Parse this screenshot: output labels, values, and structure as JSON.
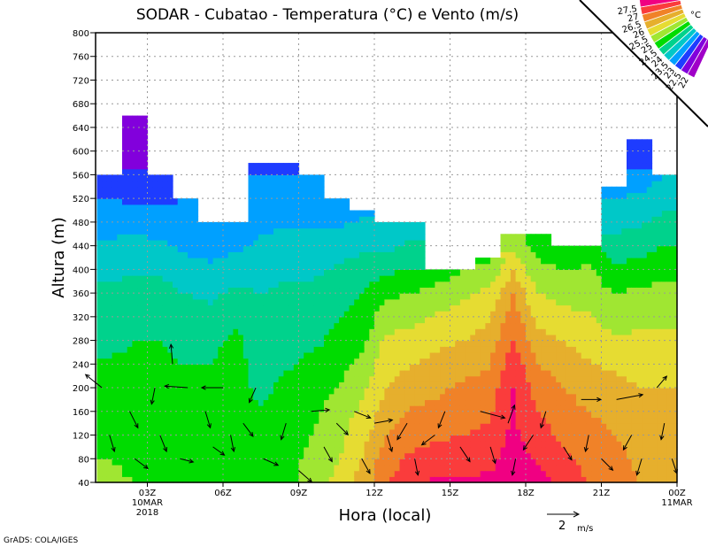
{
  "chart_data": {
    "type": "heatmap",
    "title": "SODAR - Cubatao - Temperatura (°C) e Vento (m/s)",
    "xlabel": "Hora (local)",
    "ylabel": "Altura (m)",
    "footer": "GrADS: COLA/IGES",
    "x_ticks": [
      {
        "hour": 3,
        "label": "03Z",
        "sub1": "10MAR",
        "sub2": "2018"
      },
      {
        "hour": 6,
        "label": "06Z"
      },
      {
        "hour": 9,
        "label": "09Z"
      },
      {
        "hour": 12,
        "label": "12Z"
      },
      {
        "hour": 15,
        "label": "15Z"
      },
      {
        "hour": 18,
        "label": "18Z"
      },
      {
        "hour": 21,
        "label": "21Z"
      },
      {
        "hour": 24,
        "label": "00Z",
        "sub1": "11MAR"
      }
    ],
    "xlim": [
      0.95,
      24
    ],
    "ylim": [
      40,
      800
    ],
    "y_ticks": [
      40,
      80,
      120,
      160,
      200,
      240,
      280,
      320,
      360,
      400,
      440,
      480,
      520,
      560,
      600,
      640,
      680,
      720,
      760,
      800
    ],
    "grid": true,
    "legend": {
      "unit": "°C",
      "levels": [
        22,
        22.5,
        23,
        23.5,
        24,
        24.5,
        25,
        25.5,
        26,
        26.5,
        27,
        27.5
      ],
      "level_labels": [
        "22",
        "22.5",
        "23",
        "23.5",
        "24",
        "24.5",
        "25",
        "25.5",
        "26",
        "26.5",
        "27",
        "27.5"
      ],
      "colors": [
        "#a000c8",
        "#8200dc",
        "#1e3cff",
        "#00a0ff",
        "#00c8c8",
        "#00d28c",
        "#00dc00",
        "#a0e632",
        "#e6dc32",
        "#e6af2d",
        "#f08228",
        "#fa3c3c",
        "#f00082"
      ],
      "placement": "top-right"
    },
    "height_levels": [
      40,
      120,
      200,
      280,
      360,
      440,
      520,
      600,
      680
    ],
    "columns": [
      {
        "start_hour": 1,
        "top": 560,
        "temps": [
          25.1,
          24.9,
          24.7,
          24.4,
          24.1,
          23.6,
          23.0,
          22.6
        ]
      },
      {
        "start_hour": 2,
        "top": 660,
        "temps": [
          25.0,
          24.8,
          24.6,
          24.5,
          24.2,
          23.7,
          22.9,
          22.3,
          22.0
        ]
      },
      {
        "start_hour": 3,
        "top": 560,
        "temps": [
          24.9,
          24.7,
          24.6,
          24.5,
          24.2,
          23.6,
          22.9,
          22.6
        ]
      },
      {
        "start_hour": 4,
        "top": 520,
        "temps": [
          24.8,
          24.7,
          24.6,
          24.4,
          24.0,
          23.4,
          23.0
        ]
      },
      {
        "start_hour": 5,
        "top": 480,
        "temps": [
          24.8,
          24.7,
          24.6,
          24.4,
          23.9,
          23.3,
          23.0
        ]
      },
      {
        "start_hour": 6,
        "top": 480,
        "temps": [
          25.0,
          24.6,
          24.7,
          24.6,
          24.1,
          23.4
        ]
      },
      {
        "start_hour": 7,
        "top": 580,
        "temps": [
          24.8,
          24.7,
          24.4,
          24.2,
          24.0,
          23.6,
          23.1,
          22.9
        ]
      },
      {
        "start_hour": 8,
        "top": 580,
        "temps": [
          24.9,
          24.8,
          24.6,
          24.3,
          24.1,
          23.7,
          23.2,
          22.8
        ]
      },
      {
        "start_hour": 9,
        "top": 560,
        "temps": [
          25.2,
          25.0,
          24.8,
          24.4,
          24.1,
          23.7,
          23.2,
          22.8
        ]
      },
      {
        "start_hour": 10,
        "top": 520,
        "temps": [
          25.6,
          25.3,
          25.0,
          24.6,
          24.3,
          23.8,
          23.0
        ]
      },
      {
        "start_hour": 11,
        "top": 500,
        "temps": [
          26.2,
          25.8,
          25.4,
          24.9,
          24.5,
          23.9,
          23.2
        ]
      },
      {
        "start_hour": 12,
        "top": 480,
        "temps": [
          27.0,
          26.5,
          26.0,
          25.6,
          24.9,
          23.9,
          23.3
        ]
      },
      {
        "start_hour": 13,
        "top": 480,
        "temps": [
          27.4,
          26.8,
          26.3,
          25.7,
          25.0,
          24.1,
          23.4
        ]
      },
      {
        "start_hour": 14,
        "top": 400,
        "temps": [
          27.6,
          26.9,
          26.4,
          25.9,
          25.2,
          24.3
        ]
      },
      {
        "start_hour": 15,
        "top": 400,
        "temps": [
          27.6,
          27.0,
          26.6,
          26.0,
          25.4,
          24.5
        ]
      },
      {
        "start_hour": 16,
        "top": 420,
        "temps": [
          27.6,
          27.1,
          26.7,
          26.2,
          25.6,
          24.6
        ]
      },
      {
        "start_hour": 17,
        "top": 460,
        "temps": [
          27.8,
          27.6,
          27.5,
          27.0,
          26.5,
          25.4
        ]
      },
      {
        "start_hour": 18,
        "top": 460,
        "temps": [
          27.7,
          27.2,
          26.8,
          26.2,
          25.5,
          24.8
        ]
      },
      {
        "start_hour": 19,
        "top": 440,
        "temps": [
          27.3,
          26.9,
          26.5,
          26.0,
          25.3,
          24.7
        ]
      },
      {
        "start_hour": 20,
        "top": 440,
        "temps": [
          27.0,
          26.7,
          26.3,
          25.8,
          25.3,
          24.8
        ]
      },
      {
        "start_hour": 21,
        "top": 540,
        "temps": [
          26.8,
          26.5,
          26.2,
          25.6,
          25.0,
          24.2,
          23.5
        ]
      },
      {
        "start_hour": 22,
        "top": 620,
        "temps": [
          26.5,
          26.3,
          26.0,
          25.6,
          25.1,
          24.3,
          23.6,
          22.7
        ]
      },
      {
        "start_hour": 23,
        "top": 560,
        "temps": [
          26.0,
          26.2,
          26.0,
          25.6,
          25.2,
          24.5,
          23.8
        ]
      }
    ],
    "wind_vectors": [
      [
        1.2,
        200,
        -1,
        0.8
      ],
      [
        1.5,
        120,
        0.3,
        -1
      ],
      [
        2.3,
        160,
        0.5,
        -1
      ],
      [
        2.5,
        80,
        0.8,
        -0.6
      ],
      [
        3.3,
        200,
        -0.2,
        -1
      ],
      [
        3.5,
        120,
        0.4,
        -1
      ],
      [
        4.0,
        240,
        -0.1,
        1.2
      ],
      [
        4.3,
        80,
        0.8,
        -0.2
      ],
      [
        4.6,
        200,
        -1.4,
        0.1
      ],
      [
        5.3,
        160,
        0.3,
        -1
      ],
      [
        5.6,
        100,
        0.7,
        -0.5
      ],
      [
        6.0,
        200,
        -1.3,
        0
      ],
      [
        6.3,
        120,
        0.2,
        -1
      ],
      [
        6.8,
        140,
        0.6,
        -0.8
      ],
      [
        7.3,
        200,
        -0.4,
        -0.9
      ],
      [
        7.6,
        80,
        0.9,
        -0.4
      ],
      [
        8.5,
        140,
        -0.3,
        -1
      ],
      [
        9.0,
        60,
        0.8,
        -0.7
      ],
      [
        9.5,
        160,
        1.1,
        0.1
      ],
      [
        10.0,
        100,
        0.5,
        -0.9
      ],
      [
        10.5,
        140,
        0.7,
        -0.7
      ],
      [
        11.2,
        160,
        1,
        -0.4
      ],
      [
        11.5,
        80,
        0.5,
        -0.9
      ],
      [
        12.0,
        140,
        1.1,
        0.2
      ],
      [
        12.5,
        120,
        0.3,
        -1
      ],
      [
        13.3,
        140,
        -0.6,
        -1
      ],
      [
        13.6,
        80,
        0.2,
        -1
      ],
      [
        14.4,
        120,
        -0.8,
        -0.6
      ],
      [
        14.8,
        160,
        -0.4,
        -1
      ],
      [
        15.4,
        100,
        0.6,
        -0.9
      ],
      [
        16.2,
        160,
        1.5,
        -0.4
      ],
      [
        16.6,
        100,
        0.3,
        -1
      ],
      [
        17.3,
        140,
        0.4,
        1.1
      ],
      [
        17.6,
        80,
        -0.2,
        -1
      ],
      [
        18.3,
        120,
        -0.6,
        -0.9
      ],
      [
        18.8,
        160,
        -0.3,
        -1
      ],
      [
        19.5,
        100,
        0.5,
        -0.8
      ],
      [
        20.2,
        180,
        1.2,
        0
      ],
      [
        20.5,
        120,
        -0.2,
        -1
      ],
      [
        21.0,
        80,
        0.7,
        -0.7
      ],
      [
        21.6,
        180,
        1.6,
        0.3
      ],
      [
        22.2,
        120,
        -0.5,
        -0.9
      ],
      [
        22.6,
        80,
        -0.3,
        -1
      ],
      [
        23.2,
        200,
        0.6,
        0.7
      ],
      [
        23.5,
        140,
        -0.2,
        -1
      ],
      [
        23.8,
        80,
        0.3,
        -0.9
      ]
    ],
    "reference_vector": {
      "value": "2",
      "unit": "m/s",
      "speed": 2
    }
  }
}
